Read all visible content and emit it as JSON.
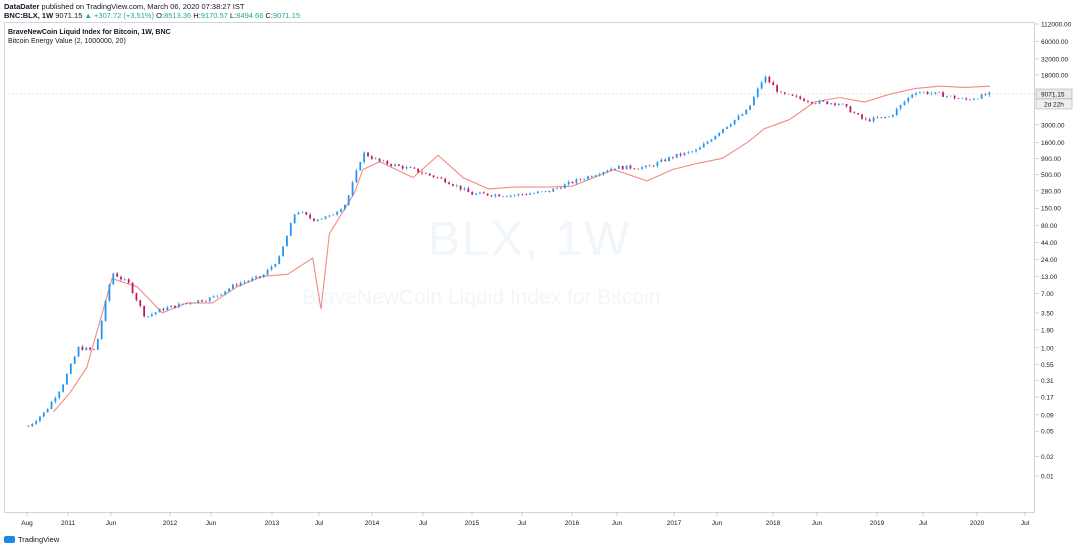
{
  "header": {
    "publisher": "DataDater",
    "published_text": "published on TradingView.com, March 06, 2020 07:38:27 IST",
    "symbol": "BNC:BLX, 1W",
    "last": "9071.15",
    "change_arrow": "▲",
    "change": "+307.72 (+3.51%)",
    "o_label": "O:",
    "o_value": "8513.36",
    "h_label": "H:",
    "h_value": "9170.57",
    "l_label": "L:",
    "l_value": "8494.66",
    "c_label": "C:",
    "c_value": "9071.15"
  },
  "legend": {
    "main": "BraveNewCoin Liquid Index for Bitcoin, 1W, BNC",
    "indicator": "Bitcoin Energy Value (2, 1000000, 20)"
  },
  "watermark": {
    "symbol": "BLX, 1W",
    "name": "BraveNewCoin Liquid Index for Bitcoin"
  },
  "price_tag": {
    "value": "9071.15",
    "countdown": "2d 22h"
  },
  "footer": {
    "brand": "TradingView"
  },
  "colors": {
    "up": "#26a69a",
    "up_bar": "#2196f3",
    "down": "#ef5350",
    "down_bar": "#c2185b",
    "energy_line": "#f28b82",
    "grid": "#e0e3eb",
    "text": "#131722"
  },
  "chart_data": {
    "type": "line",
    "y_scale": "log",
    "grid": false,
    "y_ticks": [
      "112000.00",
      "60000.00",
      "32000.00",
      "18000.00",
      "9071.15",
      "3000.00",
      "1600.00",
      "900.00",
      "500.00",
      "280.00",
      "150.00",
      "80.00",
      "44.00",
      "24.00",
      "13.00",
      "7.00",
      "3.50",
      "1.90",
      "1.00",
      "0.55",
      "0.31",
      "0.17",
      "0.09",
      "0.05",
      "0.02",
      "0.01"
    ],
    "x_ticks": [
      "Aug",
      "2011",
      "Jun",
      "2012",
      "Jun",
      "2013",
      "Jul",
      "2014",
      "Jul",
      "2015",
      "Jul",
      "2016",
      "Jun",
      "2017",
      "Jun",
      "2018",
      "Jun",
      "2019",
      "Jul",
      "2020",
      "Jul"
    ],
    "series": [
      {
        "name": "BraveNewCoin Liquid Index for Bitcoin",
        "x": [
          "2010-08",
          "2010-10",
          "2010-12",
          "2011-02",
          "2011-04",
          "2011-06",
          "2011-08",
          "2011-10",
          "2011-12",
          "2012-03",
          "2012-06",
          "2012-09",
          "2012-12",
          "2013-02",
          "2013-04",
          "2013-06",
          "2013-08",
          "2013-10",
          "2013-12",
          "2014-02",
          "2014-06",
          "2014-10",
          "2015-01",
          "2015-06",
          "2015-10",
          "2016-01",
          "2016-06",
          "2016-10",
          "2017-01",
          "2017-04",
          "2017-07",
          "2017-10",
          "2017-12",
          "2018-02",
          "2018-06",
          "2018-09",
          "2018-12",
          "2019-03",
          "2019-06",
          "2019-09",
          "2019-12",
          "2020-03"
        ],
        "values": [
          0.06,
          0.1,
          0.25,
          1.0,
          0.9,
          15,
          10,
          3,
          4,
          5,
          6,
          10,
          13,
          25,
          140,
          100,
          110,
          180,
          1100,
          800,
          600,
          400,
          250,
          240,
          270,
          380,
          650,
          650,
          950,
          1200,
          2600,
          5000,
          17000,
          9000,
          6800,
          6500,
          3500,
          4000,
          10000,
          9000,
          7300,
          9071.15
        ]
      },
      {
        "name": "Bitcoin Energy Value",
        "x": [
          "2010-11",
          "2011-01",
          "2011-03",
          "2011-06",
          "2011-09",
          "2011-12",
          "2012-03",
          "2012-06",
          "2012-09",
          "2012-12",
          "2013-03",
          "2013-06",
          "2013-07",
          "2013-08",
          "2013-11",
          "2013-12",
          "2014-02",
          "2014-06",
          "2014-09",
          "2014-12",
          "2015-03",
          "2015-06",
          "2015-10",
          "2016-01",
          "2016-06",
          "2016-10",
          "2017-01",
          "2017-04",
          "2017-07",
          "2017-10",
          "2017-12",
          "2018-03",
          "2018-06",
          "2018-09",
          "2018-12",
          "2019-03",
          "2019-06",
          "2019-09",
          "2019-12",
          "2020-03"
        ],
        "values": [
          0.1,
          0.2,
          0.5,
          12,
          9,
          3.5,
          5,
          5,
          9,
          13,
          14,
          25,
          4,
          60,
          260,
          600,
          800,
          450,
          1000,
          450,
          300,
          320,
          320,
          330,
          600,
          400,
          600,
          750,
          900,
          1600,
          2600,
          3600,
          6800,
          8000,
          6800,
          9000,
          11000,
          12000,
          11500,
          12000
        ]
      }
    ]
  }
}
